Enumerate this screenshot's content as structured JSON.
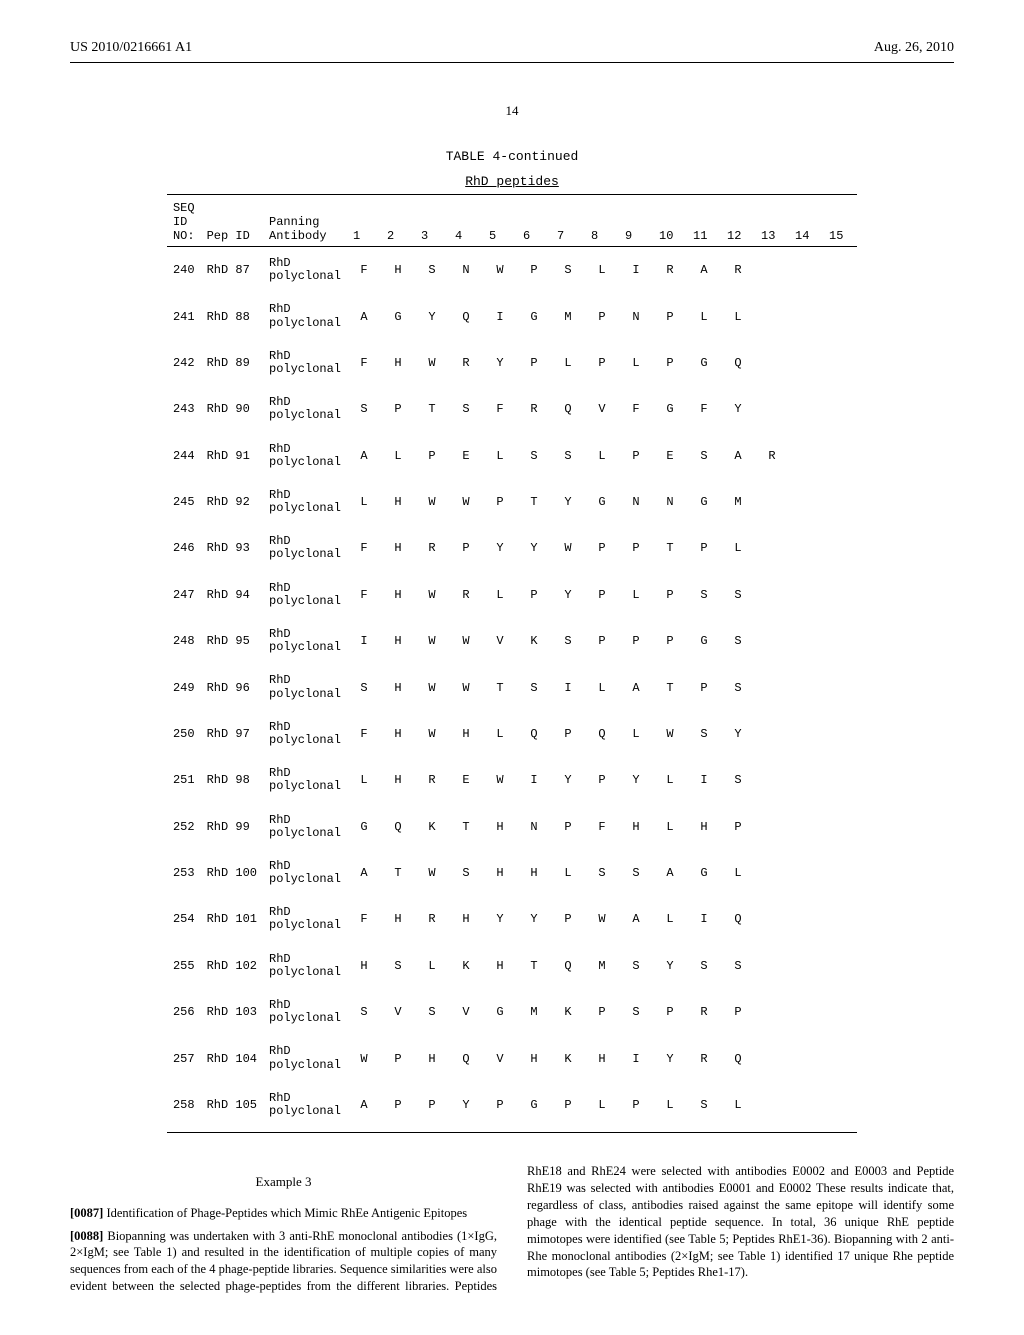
{
  "header": {
    "pub_number": "US 2010/0216661 A1",
    "pub_date": "Aug. 26, 2010",
    "page_number": "14"
  },
  "table": {
    "caption": "TABLE 4-continued",
    "subtitle": "RhD peptides",
    "head_left": [
      "SEQ",
      "ID",
      "NO:"
    ],
    "head_pep": "Pep ID",
    "head_panning": [
      "Panning",
      "Antibody"
    ],
    "seq_headers": [
      "1",
      "2",
      "3",
      "4",
      "5",
      "6",
      "7",
      "8",
      "9",
      "10",
      "11",
      "12",
      "13",
      "14",
      "15"
    ],
    "rows": [
      {
        "seq": "240",
        "pep": "RhD 87",
        "ab": "RhD polyclonal",
        "res": [
          "F",
          "H",
          "S",
          "N",
          "W",
          "P",
          "S",
          "L",
          "I",
          "R",
          "A",
          "R",
          "",
          "",
          ""
        ]
      },
      {
        "seq": "241",
        "pep": "RhD 88",
        "ab": "RhD polyclonal",
        "res": [
          "A",
          "G",
          "Y",
          "Q",
          "I",
          "G",
          "M",
          "P",
          "N",
          "P",
          "L",
          "L",
          "",
          "",
          ""
        ]
      },
      {
        "seq": "242",
        "pep": "RhD 89",
        "ab": "RhD polyclonal",
        "res": [
          "F",
          "H",
          "W",
          "R",
          "Y",
          "P",
          "L",
          "P",
          "L",
          "P",
          "G",
          "Q",
          "",
          "",
          ""
        ]
      },
      {
        "seq": "243",
        "pep": "RhD 90",
        "ab": "RhD polyclonal",
        "res": [
          "S",
          "P",
          "T",
          "S",
          "F",
          "R",
          "Q",
          "V",
          "F",
          "G",
          "F",
          "Y",
          "",
          "",
          ""
        ]
      },
      {
        "seq": "244",
        "pep": "RhD 91",
        "ab": "RhD polyclonal",
        "res": [
          "A",
          "L",
          "P",
          "E",
          "L",
          "S",
          "S",
          "L",
          "P",
          "E",
          "S",
          "A",
          "R",
          "",
          ""
        ]
      },
      {
        "seq": "245",
        "pep": "RhD 92",
        "ab": "RhD polyclonal",
        "res": [
          "L",
          "H",
          "W",
          "W",
          "P",
          "T",
          "Y",
          "G",
          "N",
          "N",
          "G",
          "M",
          "",
          "",
          ""
        ]
      },
      {
        "seq": "246",
        "pep": "RhD 93",
        "ab": "RhD polyclonal",
        "res": [
          "F",
          "H",
          "R",
          "P",
          "Y",
          "Y",
          "W",
          "P",
          "P",
          "T",
          "P",
          "L",
          "",
          "",
          ""
        ]
      },
      {
        "seq": "247",
        "pep": "RhD 94",
        "ab": "RhD polyclonal",
        "res": [
          "F",
          "H",
          "W",
          "R",
          "L",
          "P",
          "Y",
          "P",
          "L",
          "P",
          "S",
          "S",
          "",
          "",
          ""
        ]
      },
      {
        "seq": "248",
        "pep": "RhD 95",
        "ab": "RhD polyclonal",
        "res": [
          "I",
          "H",
          "W",
          "W",
          "V",
          "K",
          "S",
          "P",
          "P",
          "P",
          "G",
          "S",
          "",
          "",
          ""
        ]
      },
      {
        "seq": "249",
        "pep": "RhD 96",
        "ab": "RhD polyclonal",
        "res": [
          "S",
          "H",
          "W",
          "W",
          "T",
          "S",
          "I",
          "L",
          "A",
          "T",
          "P",
          "S",
          "",
          "",
          ""
        ]
      },
      {
        "seq": "250",
        "pep": "RhD 97",
        "ab": "RhD polyclonal",
        "res": [
          "F",
          "H",
          "W",
          "H",
          "L",
          "Q",
          "P",
          "Q",
          "L",
          "W",
          "S",
          "Y",
          "",
          "",
          ""
        ]
      },
      {
        "seq": "251",
        "pep": "RhD 98",
        "ab": "RhD polyclonal",
        "res": [
          "L",
          "H",
          "R",
          "E",
          "W",
          "I",
          "Y",
          "P",
          "Y",
          "L",
          "I",
          "S",
          "",
          "",
          ""
        ]
      },
      {
        "seq": "252",
        "pep": "RhD 99",
        "ab": "RhD polyclonal",
        "res": [
          "G",
          "Q",
          "K",
          "T",
          "H",
          "N",
          "P",
          "F",
          "H",
          "L",
          "H",
          "P",
          "",
          "",
          ""
        ]
      },
      {
        "seq": "253",
        "pep": "RhD 100",
        "ab": "RhD polyclonal",
        "res": [
          "A",
          "T",
          "W",
          "S",
          "H",
          "H",
          "L",
          "S",
          "S",
          "A",
          "G",
          "L",
          "",
          "",
          ""
        ]
      },
      {
        "seq": "254",
        "pep": "RhD 101",
        "ab": "RhD polyclonal",
        "res": [
          "F",
          "H",
          "R",
          "H",
          "Y",
          "Y",
          "P",
          "W",
          "A",
          "L",
          "I",
          "Q",
          "",
          "",
          ""
        ]
      },
      {
        "seq": "255",
        "pep": "RhD 102",
        "ab": "RhD polyclonal",
        "res": [
          "H",
          "S",
          "L",
          "K",
          "H",
          "T",
          "Q",
          "M",
          "S",
          "Y",
          "S",
          "S",
          "",
          "",
          ""
        ]
      },
      {
        "seq": "256",
        "pep": "RhD 103",
        "ab": "RhD polyclonal",
        "res": [
          "S",
          "V",
          "S",
          "V",
          "G",
          "M",
          "K",
          "P",
          "S",
          "P",
          "R",
          "P",
          "",
          "",
          ""
        ]
      },
      {
        "seq": "257",
        "pep": "RhD 104",
        "ab": "RhD polyclonal",
        "res": [
          "W",
          "P",
          "H",
          "Q",
          "V",
          "H",
          "K",
          "H",
          "I",
          "Y",
          "R",
          "Q",
          "",
          "",
          ""
        ]
      },
      {
        "seq": "258",
        "pep": "RhD 105",
        "ab": "RhD polyclonal",
        "res": [
          "A",
          "P",
          "P",
          "Y",
          "P",
          "G",
          "P",
          "L",
          "P",
          "L",
          "S",
          "L",
          "",
          "",
          ""
        ]
      }
    ]
  },
  "body": {
    "example_title": "Example 3",
    "p1_num": "[0087]",
    "p1_text": " Identification of Phage-Peptides which Mimic RhEe Antigenic Epitopes",
    "p2_num": "[0088]",
    "p2_text": " Biopanning was undertaken with 3 anti-RhE monoclonal antibodies (1×IgG, 2×IgM; see Table 1) and resulted in the identification of multiple copies of many sequences from each of the 4 phage-peptide libraries. Sequence similarities were also evident between the selected phage-peptides from the different libraries. Peptides RhE18 and RhE24 were selected with antibodies E0002 and E0003 and Peptide RhE19 was selected with antibodies E0001 and E0002 These results indicate that, regardless of class, antibodies raised against the same epitope will identify some phage with the identical peptide sequence. In total, 36 unique RhE peptide mimotopes were identified (see Table 5; Peptides RhE1-36). Biopanning with 2 anti-Rhe monoclonal antibodies (2×IgM; see Table 1) identified 17 unique Rhe peptide mimotopes (see Table 5; Peptides Rhe1-17)."
  }
}
